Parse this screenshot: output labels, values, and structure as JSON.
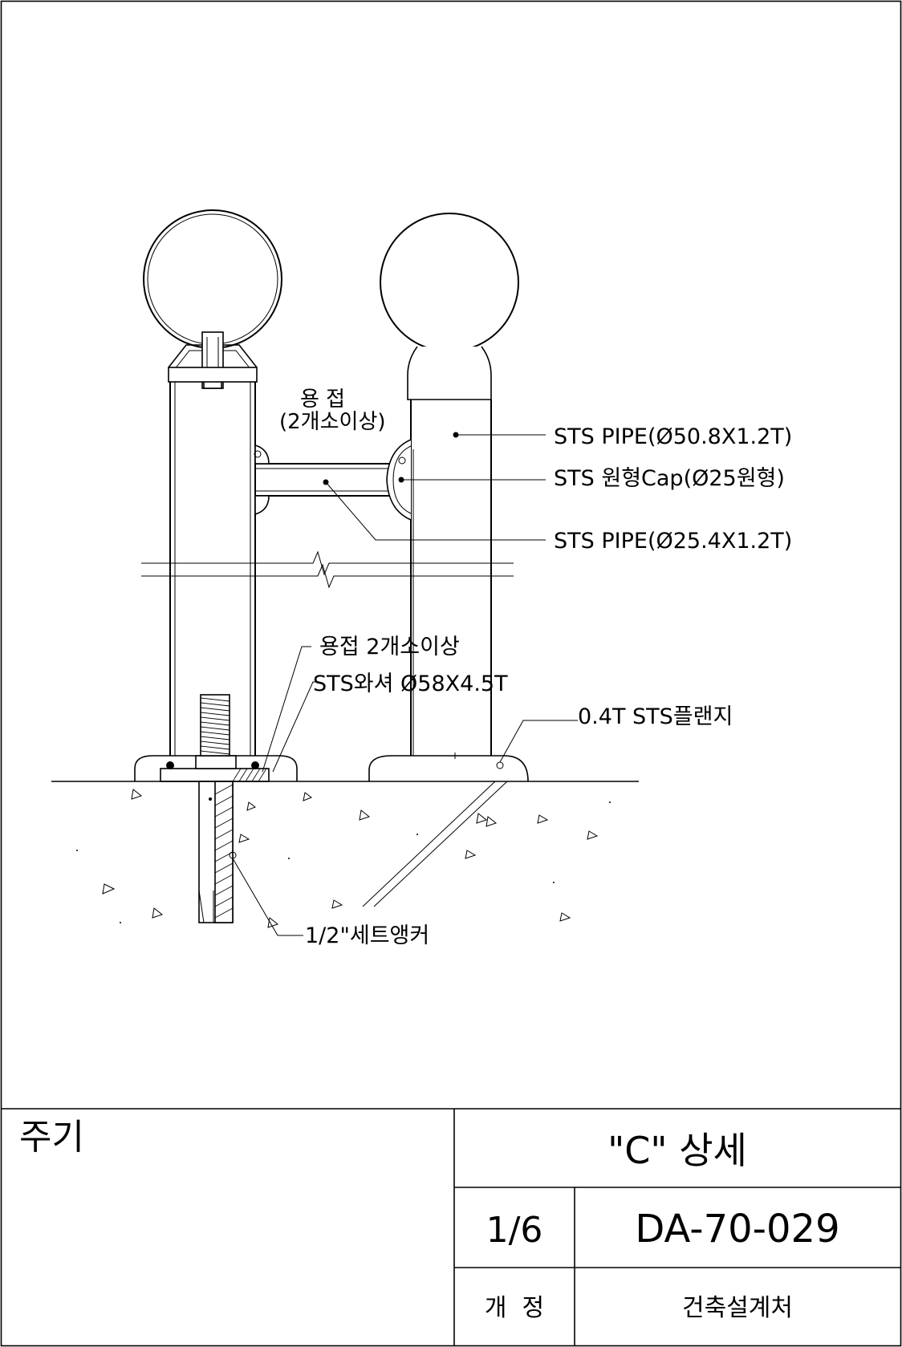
{
  "callouts": {
    "weld_top_line1": "용 접",
    "weld_top_line2": "(2개소이상)",
    "pipe_50": "STS PIPE(Ø50.8X1.2T)",
    "round_cap": "STS 원형Cap(Ø25원형)",
    "pipe_25": "STS PIPE(Ø25.4X1.2T)",
    "weld_bottom": "용접 2개소이상",
    "washer": "STS와셔 Ø58X4.5T",
    "flange": "0.4T STS플랜지",
    "anchor": "1/2\"세트앵커"
  },
  "title_block": {
    "notes_label": "주기",
    "drawing_title": "\"C\" 상세",
    "sheet": "1/6",
    "drawing_number": "DA-70-029",
    "revision_label": "개  정",
    "department": "건축설계처"
  }
}
